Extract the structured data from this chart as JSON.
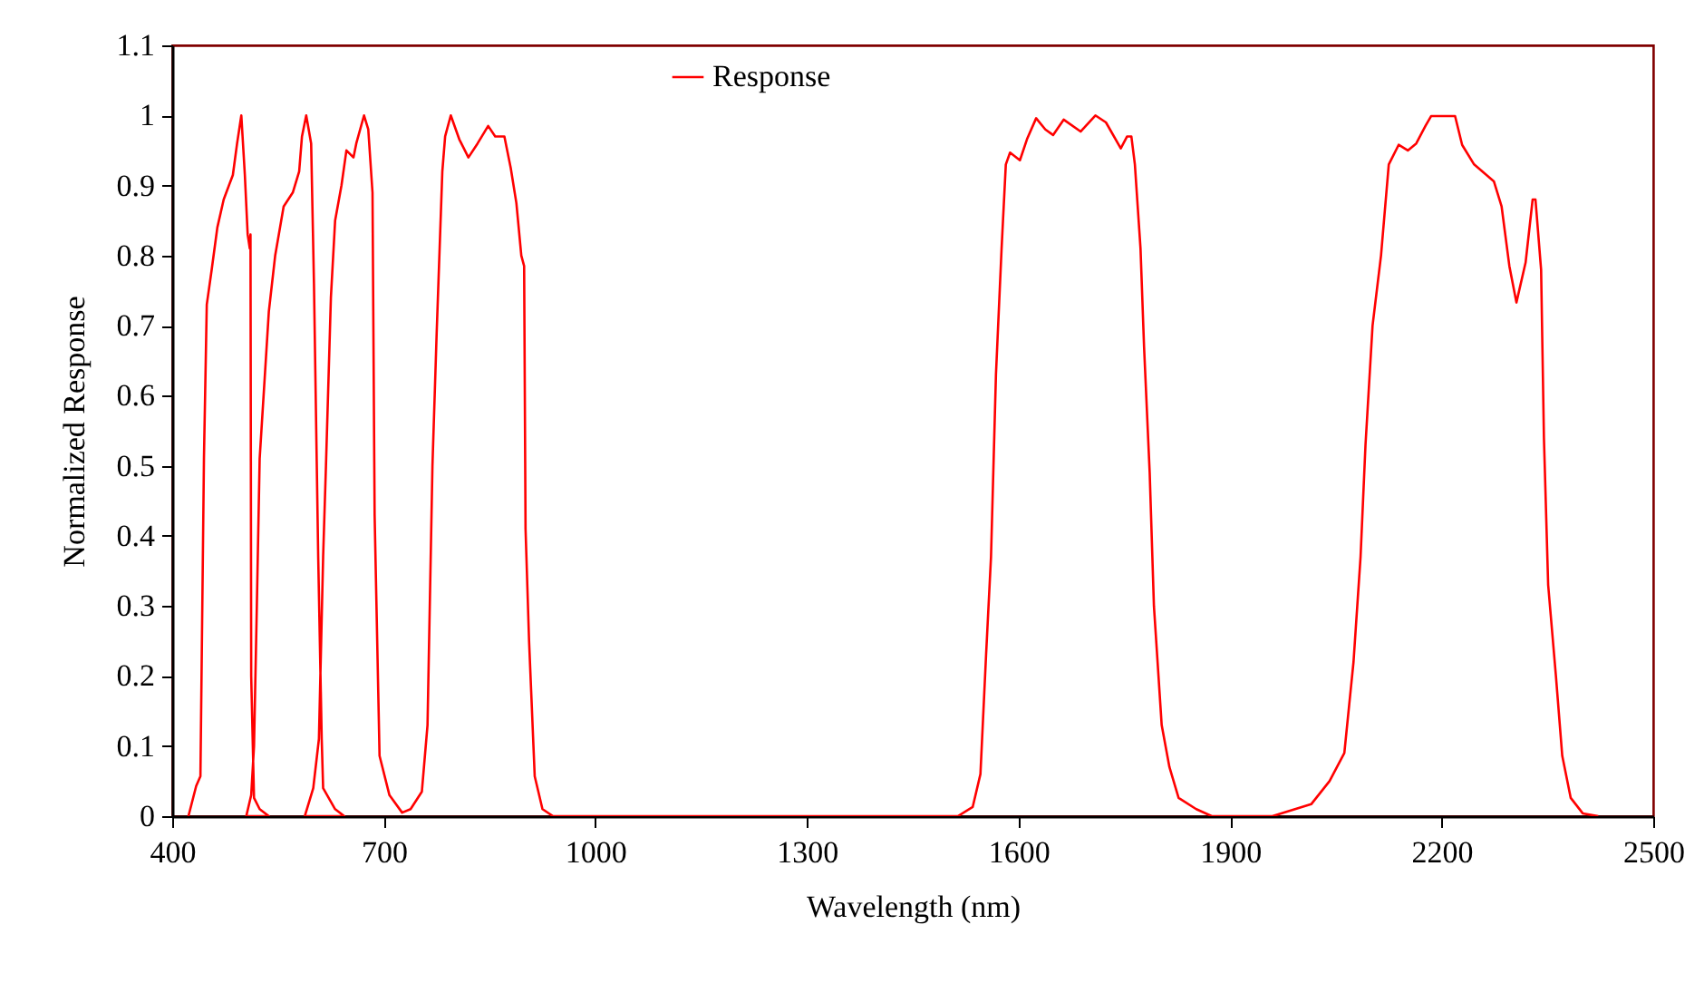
{
  "chart_data": {
    "type": "line",
    "xlabel": "Wavelength (nm)",
    "ylabel": "Normalized Response",
    "xlim": [
      400,
      2500
    ],
    "xticks": [
      400,
      700,
      1000,
      1300,
      1600,
      1900,
      2200,
      2500
    ],
    "ylim": [
      0,
      1.1
    ],
    "yticks": [
      0,
      0.1,
      0.2,
      0.3,
      0.4,
      0.5,
      0.6,
      0.7,
      0.8,
      0.9,
      1,
      1.1
    ],
    "grid": false,
    "legend": "top",
    "marker": "none",
    "line_style": "solid",
    "series": [
      {
        "name": "Response",
        "color": "#ff0000",
        "x": [
          423,
          434,
          440,
          445,
          449,
          456,
          464,
          473,
          486,
          492,
          498,
          503,
          507,
          510,
          511,
          512,
          516,
          524,
          537,
          505,
          512,
          516,
          520,
          524,
          537,
          546,
          558,
          571,
          580,
          584,
          590,
          597,
          601,
          607,
          612,
          614,
          631,
          644,
          588,
          600,
          608,
          614,
          618,
          625,
          631,
          640,
          647,
          657,
          661,
          672,
          678,
          684,
          687,
          694,
          708,
          726,
          738,
          754,
          762,
          769,
          775,
          783,
          787,
          795,
          807,
          820,
          833,
          848,
          858,
          871,
          880,
          888,
          895,
          899,
          901,
          906,
          914,
          925,
          940,
          1514,
          1535,
          1546,
          1554,
          1561,
          1568,
          1576,
          1582,
          1588,
          1602,
          1612,
          1625,
          1638,
          1649,
          1664,
          1688,
          1709,
          1724,
          1745,
          1754,
          1760,
          1765,
          1773,
          1778,
          1786,
          1792,
          1803,
          1814,
          1827,
          1852,
          1874,
          1960,
          2015,
          2041,
          2062,
          2075,
          2085,
          2092,
          2102,
          2114,
          2125,
          2139,
          2152,
          2164,
          2177,
          2185,
          2219,
          2229,
          2246,
          2274,
          2285,
          2296,
          2306,
          2319,
          2329,
          2333,
          2341,
          2345,
          2351,
          2362,
          2371,
          2383,
          2400,
          2422
        ],
        "values": [
          0,
          0.043,
          0.057,
          0.51,
          0.73,
          0.78,
          0.84,
          0.88,
          0.915,
          0.96,
          1,
          0.915,
          0.83,
          0.81,
          0.83,
          0.2,
          0.026,
          0.01,
          0,
          0,
          0.03,
          0.1,
          0.3,
          0.51,
          0.72,
          0.8,
          0.87,
          0.89,
          0.92,
          0.97,
          1,
          0.96,
          0.76,
          0.37,
          0.11,
          0.04,
          0.01,
          0,
          0,
          0.04,
          0.11,
          0.37,
          0.5,
          0.74,
          0.85,
          0.9,
          0.95,
          0.94,
          0.96,
          1,
          0.98,
          0.89,
          0.43,
          0.086,
          0.03,
          0.005,
          0.01,
          0.035,
          0.13,
          0.5,
          0.69,
          0.92,
          0.97,
          1,
          0.966,
          0.94,
          0.96,
          0.985,
          0.97,
          0.97,
          0.925,
          0.875,
          0.8,
          0.785,
          0.41,
          0.25,
          0.057,
          0.01,
          0,
          0,
          0.013,
          0.06,
          0.23,
          0.37,
          0.63,
          0.81,
          0.93,
          0.947,
          0.936,
          0.966,
          0.996,
          0.98,
          0.972,
          0.994,
          0.977,
          1,
          0.99,
          0.953,
          0.97,
          0.97,
          0.93,
          0.81,
          0.67,
          0.49,
          0.3,
          0.13,
          0.07,
          0.026,
          0.01,
          0,
          0,
          0.017,
          0.05,
          0.09,
          0.22,
          0.37,
          0.53,
          0.7,
          0.8,
          0.93,
          0.958,
          0.95,
          0.96,
          0.985,
          0.999,
          0.999,
          0.958,
          0.93,
          0.906,
          0.87,
          0.785,
          0.733,
          0.79,
          0.88,
          0.88,
          0.78,
          0.54,
          0.33,
          0.2,
          0.086,
          0.026,
          0.004,
          0
        ]
      }
    ]
  }
}
